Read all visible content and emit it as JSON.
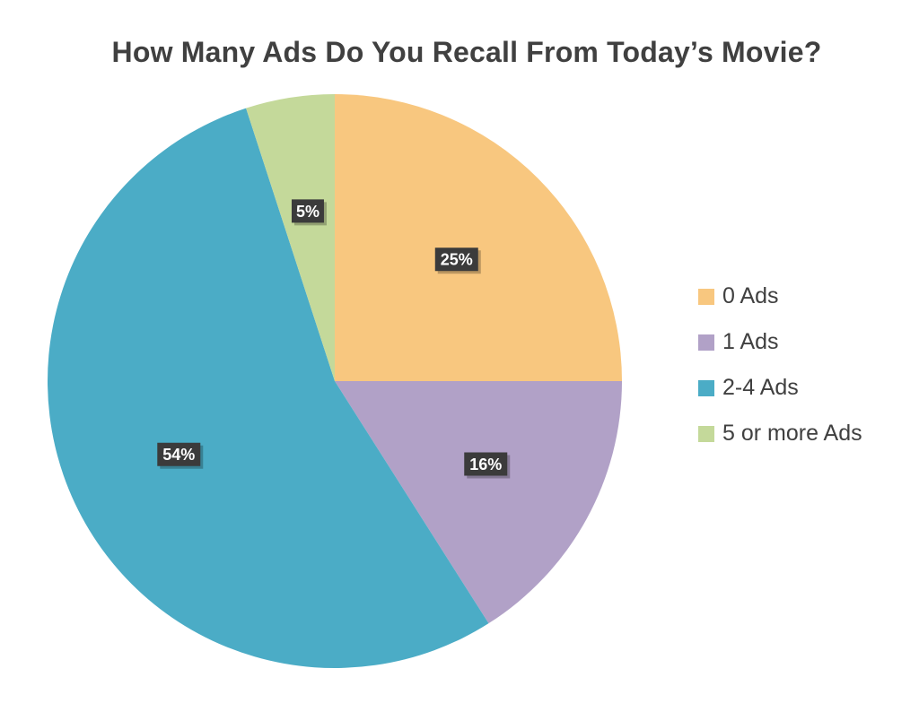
{
  "chart_data": {
    "type": "pie",
    "title": "How Many Ads Do You Recall From Today’s Movie?",
    "categories": [
      "0 Ads",
      "1 Ads",
      "2-4 Ads",
      "5 or more Ads"
    ],
    "values": [
      25,
      16,
      54,
      5
    ],
    "data_labels": [
      "25%",
      "16%",
      "54%",
      "5%"
    ],
    "colors": [
      "#F8C77F",
      "#B1A1C7",
      "#4BACC6",
      "#C4D99A"
    ],
    "start_angle": "12 o'clock",
    "direction": "clockwise",
    "legend_position": "right",
    "label_style": "dark boxes with white bold text"
  }
}
